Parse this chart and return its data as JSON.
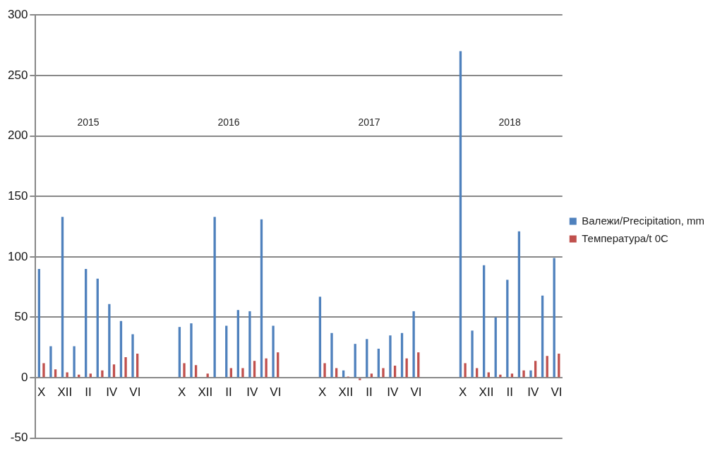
{
  "chart_data": {
    "type": "bar",
    "categories": [
      "X",
      null,
      "XII",
      null,
      "II",
      null,
      "IV",
      null,
      "VI",
      null,
      null,
      null,
      "X",
      null,
      "XII",
      null,
      "II",
      null,
      "IV",
      null,
      "VI",
      null,
      null,
      null,
      "X",
      null,
      "XII",
      null,
      "II",
      null,
      "IV",
      null,
      "VI",
      null,
      null,
      null,
      "X",
      null,
      "XII",
      null,
      "II",
      null,
      "IV",
      null,
      "VI"
    ],
    "series": [
      {
        "name": "Валежи/Precipitation, mm",
        "color": "#4f81bd",
        "values": [
          90,
          26,
          133,
          26,
          90,
          82,
          61,
          47,
          36,
          null,
          null,
          null,
          42,
          45,
          0.5,
          133,
          43,
          56,
          55,
          131,
          43,
          null,
          null,
          null,
          67,
          37,
          6,
          28,
          32,
          24,
          35,
          37,
          55,
          null,
          null,
          null,
          270,
          39,
          93,
          50,
          81,
          121,
          6,
          68,
          99
        ]
      },
      {
        "name": "Температура/t 0C",
        "color": "#c0504d",
        "values": [
          12,
          7,
          4.5,
          2.5,
          3.5,
          6,
          11,
          17,
          20,
          null,
          null,
          null,
          12,
          10.5,
          3.5,
          0.5,
          8,
          8,
          14,
          16,
          21,
          null,
          null,
          null,
          12,
          8,
          1,
          -2,
          3.5,
          8,
          10,
          16,
          21,
          null,
          null,
          null,
          12,
          8,
          4.5,
          2.5,
          3.5,
          6,
          14,
          18,
          20
        ]
      }
    ],
    "ylim": [
      -50,
      300
    ],
    "yticks": [
      -50,
      0,
      50,
      100,
      150,
      200,
      250,
      300
    ],
    "grid": "y",
    "legend": "right",
    "annotations": [
      "2015",
      "2016",
      "2017",
      "2018"
    ]
  }
}
